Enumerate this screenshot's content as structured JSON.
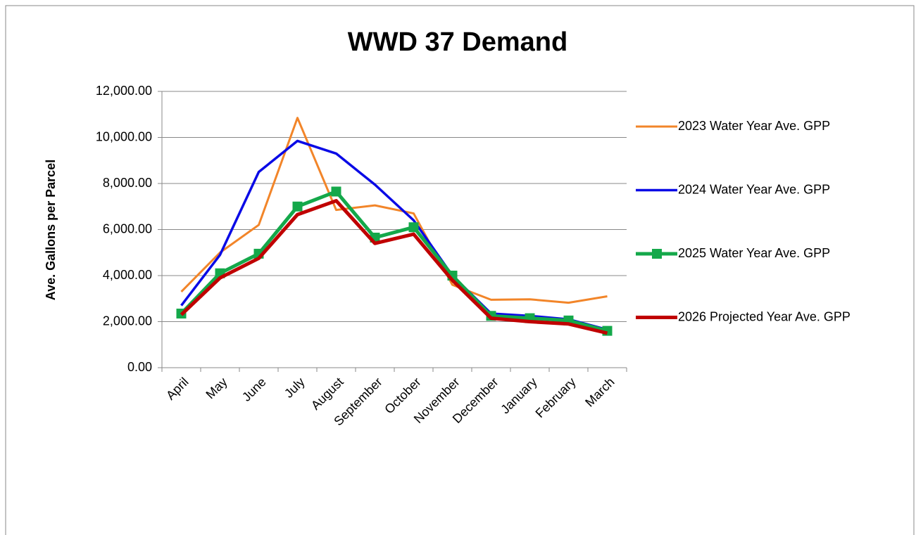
{
  "chart_data": {
    "type": "line",
    "title": "WWD 37 Demand",
    "y_label": "Ave. Gallons per Parcel",
    "categories": [
      "April",
      "May",
      "June",
      "July",
      "August",
      "September",
      "October",
      "November",
      "December",
      "January",
      "February",
      "March"
    ],
    "series": [
      {
        "name": "2023 Water Year Ave. GPP",
        "color": "#f28529",
        "width": 3,
        "marker": null,
        "values": [
          3300,
          5000,
          6200,
          10850,
          6850,
          7050,
          6700,
          3600,
          2950,
          2970,
          2820,
          3100
        ]
      },
      {
        "name": "2024 Water Year Ave. GPP",
        "color": "#0a0ae6",
        "width": 3.5,
        "marker": null,
        "values": [
          2700,
          4900,
          8500,
          9850,
          9300,
          7950,
          6400,
          4000,
          2350,
          2250,
          2100,
          1650
        ]
      },
      {
        "name": "2025 Water Year Ave. GPP",
        "color": "#14a84a",
        "width": 5,
        "marker": "square",
        "values": [
          2350,
          4100,
          4950,
          7000,
          7650,
          5650,
          6100,
          4000,
          2250,
          2150,
          2050,
          1600
        ]
      },
      {
        "name": "2026 Projected Year Ave. GPP",
        "color": "#c00000",
        "width": 5,
        "marker": null,
        "values": [
          2300,
          3900,
          4750,
          6650,
          7250,
          5400,
          5800,
          3800,
          2150,
          2000,
          1900,
          1500
        ]
      }
    ],
    "ylim": [
      0,
      12000
    ],
    "yticks": [
      {
        "value": 0,
        "label": "0.00"
      },
      {
        "value": 2000,
        "label": "2,000.00"
      },
      {
        "value": 4000,
        "label": "4,000.00"
      },
      {
        "value": 6000,
        "label": "6,000.00"
      },
      {
        "value": 8000,
        "label": "8,000.00"
      },
      {
        "value": 10000,
        "label": "10,000.00"
      },
      {
        "value": 12000,
        "label": "12,000.00"
      }
    ],
    "grid": true,
    "legend": "right"
  }
}
